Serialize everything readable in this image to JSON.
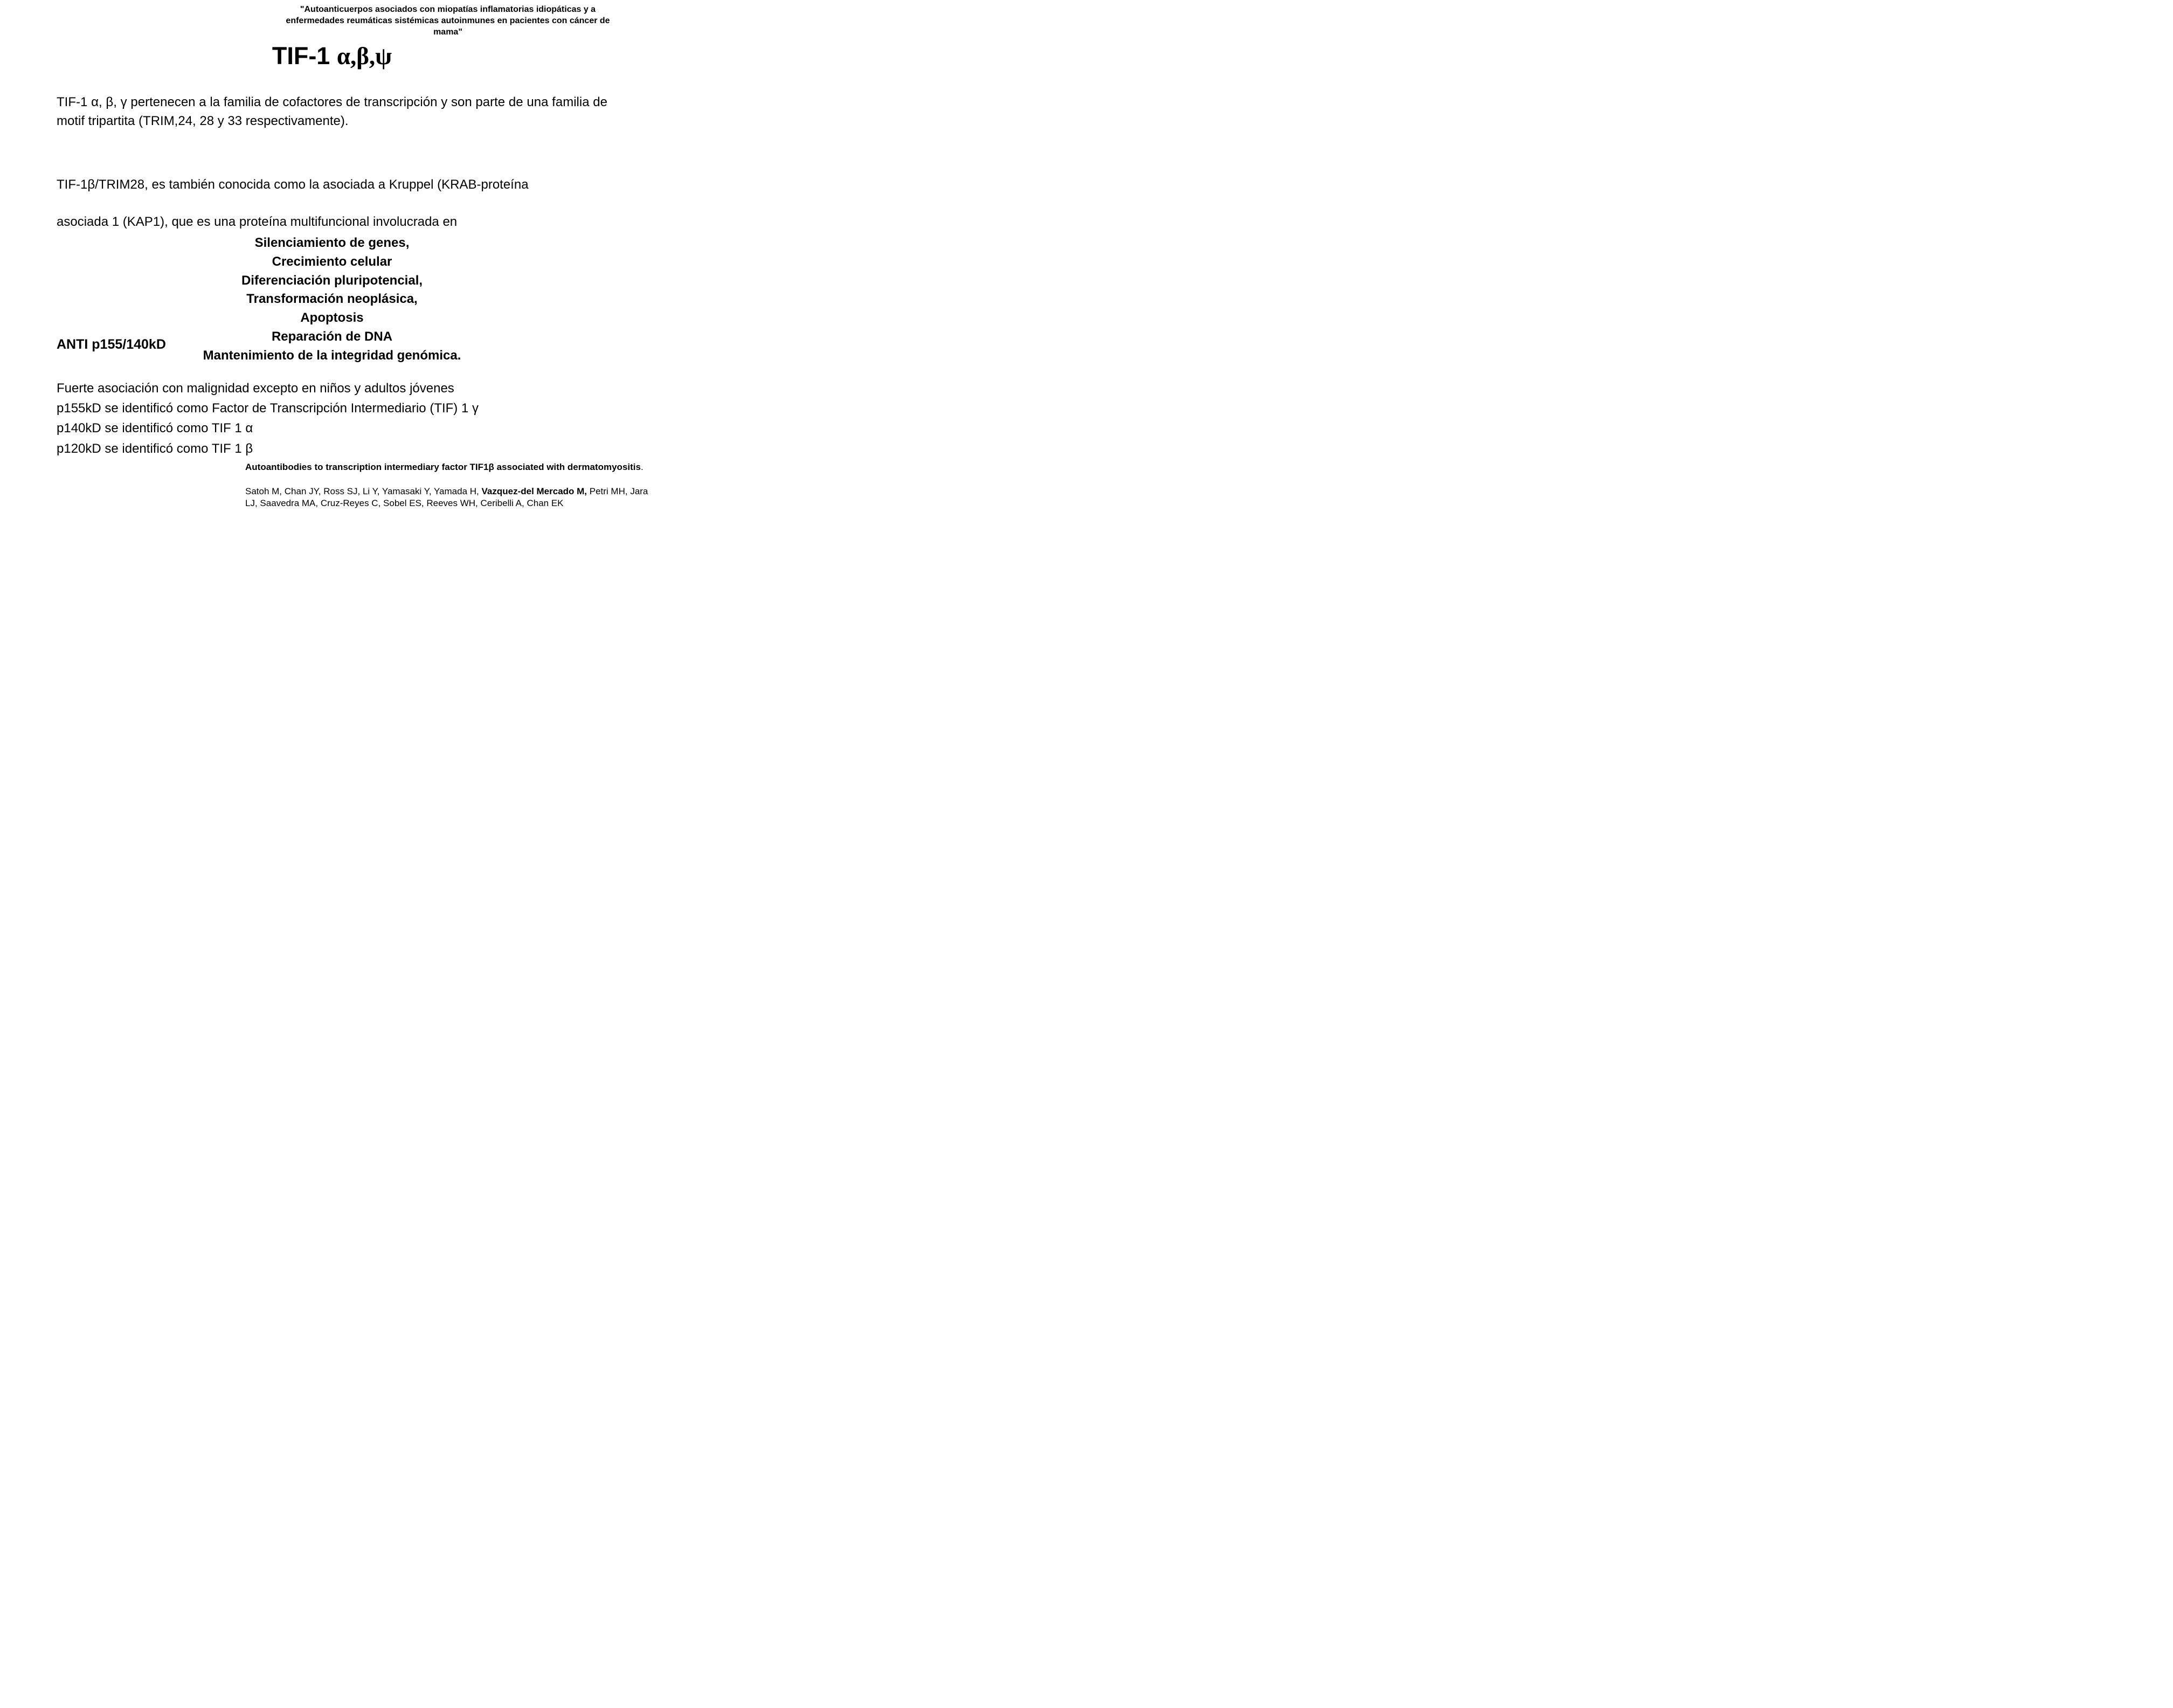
{
  "header_quote": "\"Autoanticuerpos asociados con miopatías inflamatorias idiopáticas y a enfermedades reumáticas sistémicas autoinmunes en pacientes con cáncer de mama\"",
  "title_prefix": "TIF-1 ",
  "title_greek": "α,β,ψ",
  "para1": "TIF-1 α, β, γ pertenecen a la familia de cofactores de transcripción y son parte de una familia de motif tripartita (TRIM,24, 28 y 33 respectivamente).",
  "para2_line1": "TIF-1β/TRIM28, es también conocida como la asociada a Kruppel (KRAB-proteína",
  "para2_line2": "asociada 1 (KAP1), que es una proteína multifuncional involucrada en",
  "functions": {
    "f1": "Silenciamiento de genes,",
    "f2": "Crecimiento celular",
    "f3": "Diferenciación pluripotencial,",
    "f4": "Transformación neoplásica,",
    "f5": "Apoptosis",
    "f6": "Reparación de DNA",
    "f7": "Mantenimiento de la integridad genómica."
  },
  "anti_label": "ANTI p155/140kD",
  "assoc": {
    "l1": "Fuerte asociación con malignidad excepto en niños y adultos jóvenes",
    "l2": "p155kD  se identificó como Factor de Transcripción Intermediario (TIF) 1 γ",
    "l3": "p140kD  se identificó como TIF 1 α",
    "l4": "p120kD  se identificó como TIF 1 β"
  },
  "citation": {
    "title_part1": "Autoantibodies to transcription intermediary factor TIF1β associated with dermatomyositis",
    "title_part2": ".",
    "authors_plain1": "Satoh M, Chan JY, Ross SJ, Li Y, Yamasaki Y, Yamada H, ",
    "authors_bold": "Vazquez-del Mercado M,",
    "authors_plain2": " Petri MH, Jara LJ, Saavedra MA, Cruz-Reyes C, Sobel ES, Reeves WH, Ceribelli A, Chan EK"
  },
  "colors": {
    "background": "#ffffff",
    "text": "#000000"
  },
  "typography": {
    "body_font": "Arial",
    "body_size_pt": 18,
    "title_size_pt": 34,
    "header_size_pt": 12,
    "citation_size_pt": 13
  }
}
